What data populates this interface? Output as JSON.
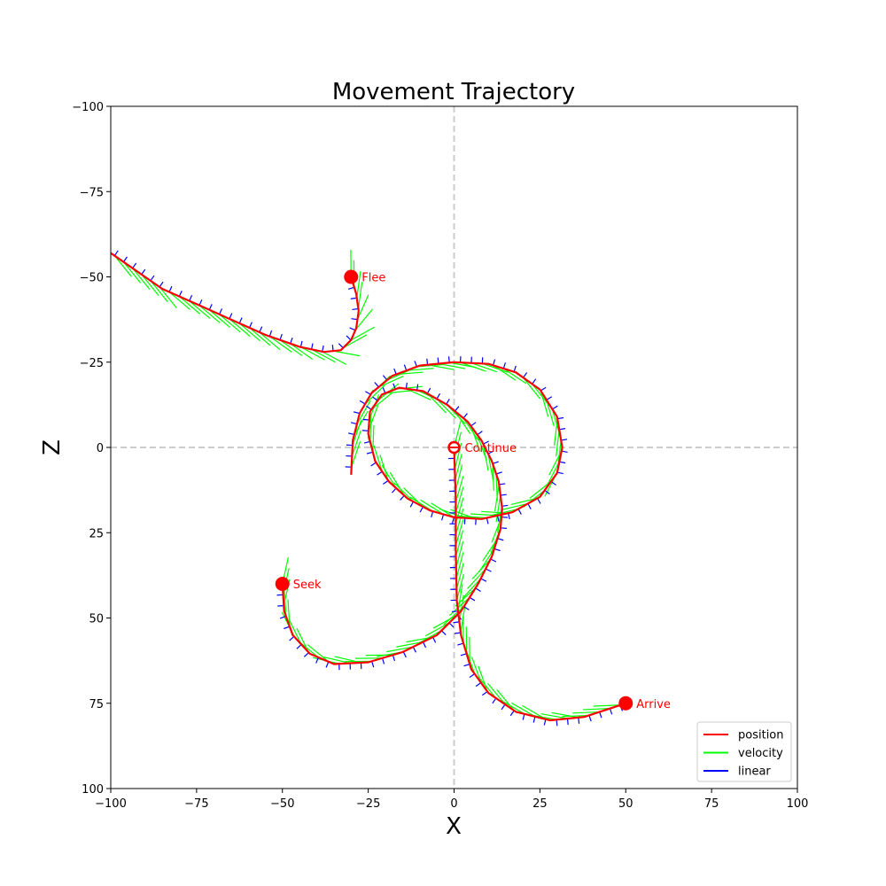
{
  "chart_data": {
    "type": "line",
    "title": "Movement Trajectory",
    "xlabel": "X",
    "ylabel": "Z",
    "xlim": [
      -100,
      100
    ],
    "ylim": [
      100,
      -100
    ],
    "y_axis_inverted": true,
    "xticks": [
      -100,
      -75,
      -50,
      -25,
      0,
      25,
      50,
      75,
      100
    ],
    "yticks": [
      -100,
      -75,
      -50,
      -25,
      0,
      25,
      50,
      75,
      100
    ],
    "grid": false,
    "reference_lines": {
      "x": 0,
      "z": 0,
      "style": "dashed",
      "color": "#cccccc"
    },
    "legend": {
      "placement": "lower-right",
      "entries": [
        {
          "name": "position",
          "color": "#ff0000"
        },
        {
          "name": "velocity",
          "color": "#00ff00"
        },
        {
          "name": "linear",
          "color": "#0000ff"
        }
      ]
    },
    "series": [
      {
        "name": "position",
        "color": "#ff0000",
        "segments": [
          {
            "label": "Flee",
            "start": [
              -30,
              -50
            ],
            "points": [
              [
                -30,
                -50
              ],
              [
                -28.5,
                -45
              ],
              [
                -27.8,
                -40
              ],
              [
                -28.5,
                -35
              ],
              [
                -30,
                -31.5
              ],
              [
                -33,
                -28.5
              ],
              [
                -38,
                -28
              ],
              [
                -45,
                -29.5
              ],
              [
                -55,
                -33
              ],
              [
                -65,
                -37.5
              ],
              [
                -75,
                -42
              ],
              [
                -85,
                -46.5
              ],
              [
                -100,
                -57
              ]
            ]
          },
          {
            "label": "Continue",
            "start": [
              0,
              0
            ],
            "points": [
              [
                0,
                0
              ],
              [
                0.5,
                15
              ],
              [
                0.5,
                30
              ],
              [
                0.8,
                45
              ],
              [
                2,
                55
              ],
              [
                5,
                65
              ],
              [
                10,
                72
              ],
              [
                18,
                77.5
              ],
              [
                28,
                80
              ],
              [
                38,
                79
              ],
              [
                50,
                75
              ]
            ]
          },
          {
            "label": "Seek",
            "start": [
              -50,
              40
            ],
            "points": [
              [
                -50,
                40
              ],
              [
                -49.5,
                48
              ],
              [
                -47,
                55
              ],
              [
                -42,
                60.5
              ],
              [
                -35,
                63.5
              ],
              [
                -25,
                63
              ],
              [
                -15,
                60
              ],
              [
                -5,
                55
              ],
              [
                2,
                48
              ],
              [
                7,
                40
              ],
              [
                11,
                32
              ],
              [
                13.5,
                24
              ],
              [
                14,
                18
              ],
              [
                13,
                10
              ],
              [
                11,
                4
              ],
              [
                8,
                -2
              ],
              [
                4,
                -7.5
              ],
              [
                -2,
                -12.5
              ],
              [
                -9,
                -16.5
              ],
              [
                -16,
                -17.5
              ],
              [
                -21,
                -15.5
              ],
              [
                -24.5,
                -10.5
              ],
              [
                -25,
                -4
              ],
              [
                -23,
                4
              ],
              [
                -19,
                10
              ],
              [
                -13.5,
                15
              ],
              [
                -7,
                18.5
              ],
              [
                0,
                20.5
              ],
              [
                8,
                21
              ],
              [
                17,
                19
              ],
              [
                25,
                14.5
              ],
              [
                30,
                7.5
              ],
              [
                31.5,
                0
              ],
              [
                30,
                -9
              ],
              [
                25,
                -17
              ],
              [
                18,
                -22
              ],
              [
                10,
                -24.5
              ],
              [
                0,
                -25
              ],
              [
                -10,
                -24
              ],
              [
                -18,
                -21
              ],
              [
                -24,
                -16
              ],
              [
                -27.5,
                -10
              ],
              [
                -29.5,
                -2
              ],
              [
                -30,
                8
              ]
            ]
          },
          {
            "label": "Arrive",
            "start": [
              50,
              75
            ],
            "points": []
          }
        ]
      },
      {
        "name": "velocity",
        "color": "#00ff00",
        "note": "tangent velocity arrows sampled along each path"
      },
      {
        "name": "linear",
        "color": "#0000ff",
        "note": "linear acceleration ticks sampled along each path"
      }
    ],
    "annotations": [
      {
        "text": "Flee",
        "x": -30,
        "z": -50,
        "marker": "filled-circle"
      },
      {
        "text": "Continue",
        "x": 0,
        "z": 0,
        "marker": "circle-with-cross"
      },
      {
        "text": "Seek",
        "x": -50,
        "z": 40,
        "marker": "filled-circle"
      },
      {
        "text": "Arrive",
        "x": 50,
        "z": 75,
        "marker": "filled-circle"
      }
    ]
  }
}
